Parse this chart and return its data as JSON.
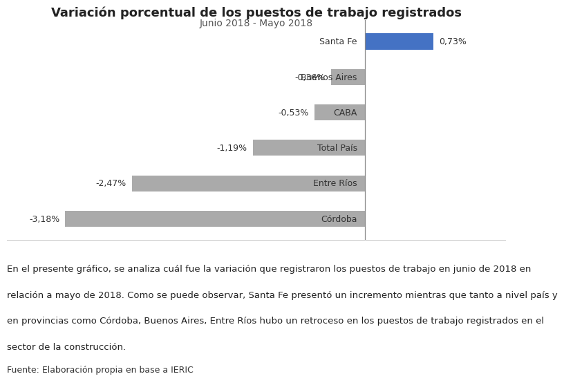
{
  "title": "Variación porcentual de los puestos de trabajo registrados",
  "subtitle": "Junio 2018 - Mayo 2018",
  "categories": [
    "Santa Fe",
    "Buenos Aires",
    "CABA",
    "Total País",
    "Entre Ríos",
    "Córdoba"
  ],
  "values": [
    0.73,
    -0.36,
    -0.53,
    -1.19,
    -2.47,
    -3.18
  ],
  "labels": [
    "0,73%",
    "-0,36%",
    "-0,53%",
    "-1,19%",
    "-2,47%",
    "-3,18%"
  ],
  "bar_colors": [
    "#4472C4",
    "#AAAAAA",
    "#AAAAAA",
    "#AAAAAA",
    "#AAAAAA",
    "#AAAAAA"
  ],
  "xlim": [
    -3.8,
    1.5
  ],
  "background_color": "#FFFFFF",
  "desc_line1": "En el presente gráfico, se analiza cuál fue la variación que registraron los puestos de trabajo en junio de 2018 en",
  "desc_line2": "relación a mayo de 2018. Como se puede observar, Santa Fe presentó un incremento mientras que tanto a nivel país y",
  "desc_line3": "en provincias como Córdoba, Buenos Aires, Entre Ríos hubo un retroceso en los puestos de trabajo registrados en el",
  "desc_line4": "sector de la construcción.",
  "source": "Fuente: Elaboración propia en base a IERIC",
  "bar_height": 0.45,
  "title_fontsize": 13,
  "subtitle_fontsize": 10,
  "label_fontsize": 9,
  "category_fontsize": 9,
  "desc_fontsize": 9.5,
  "source_fontsize": 9
}
